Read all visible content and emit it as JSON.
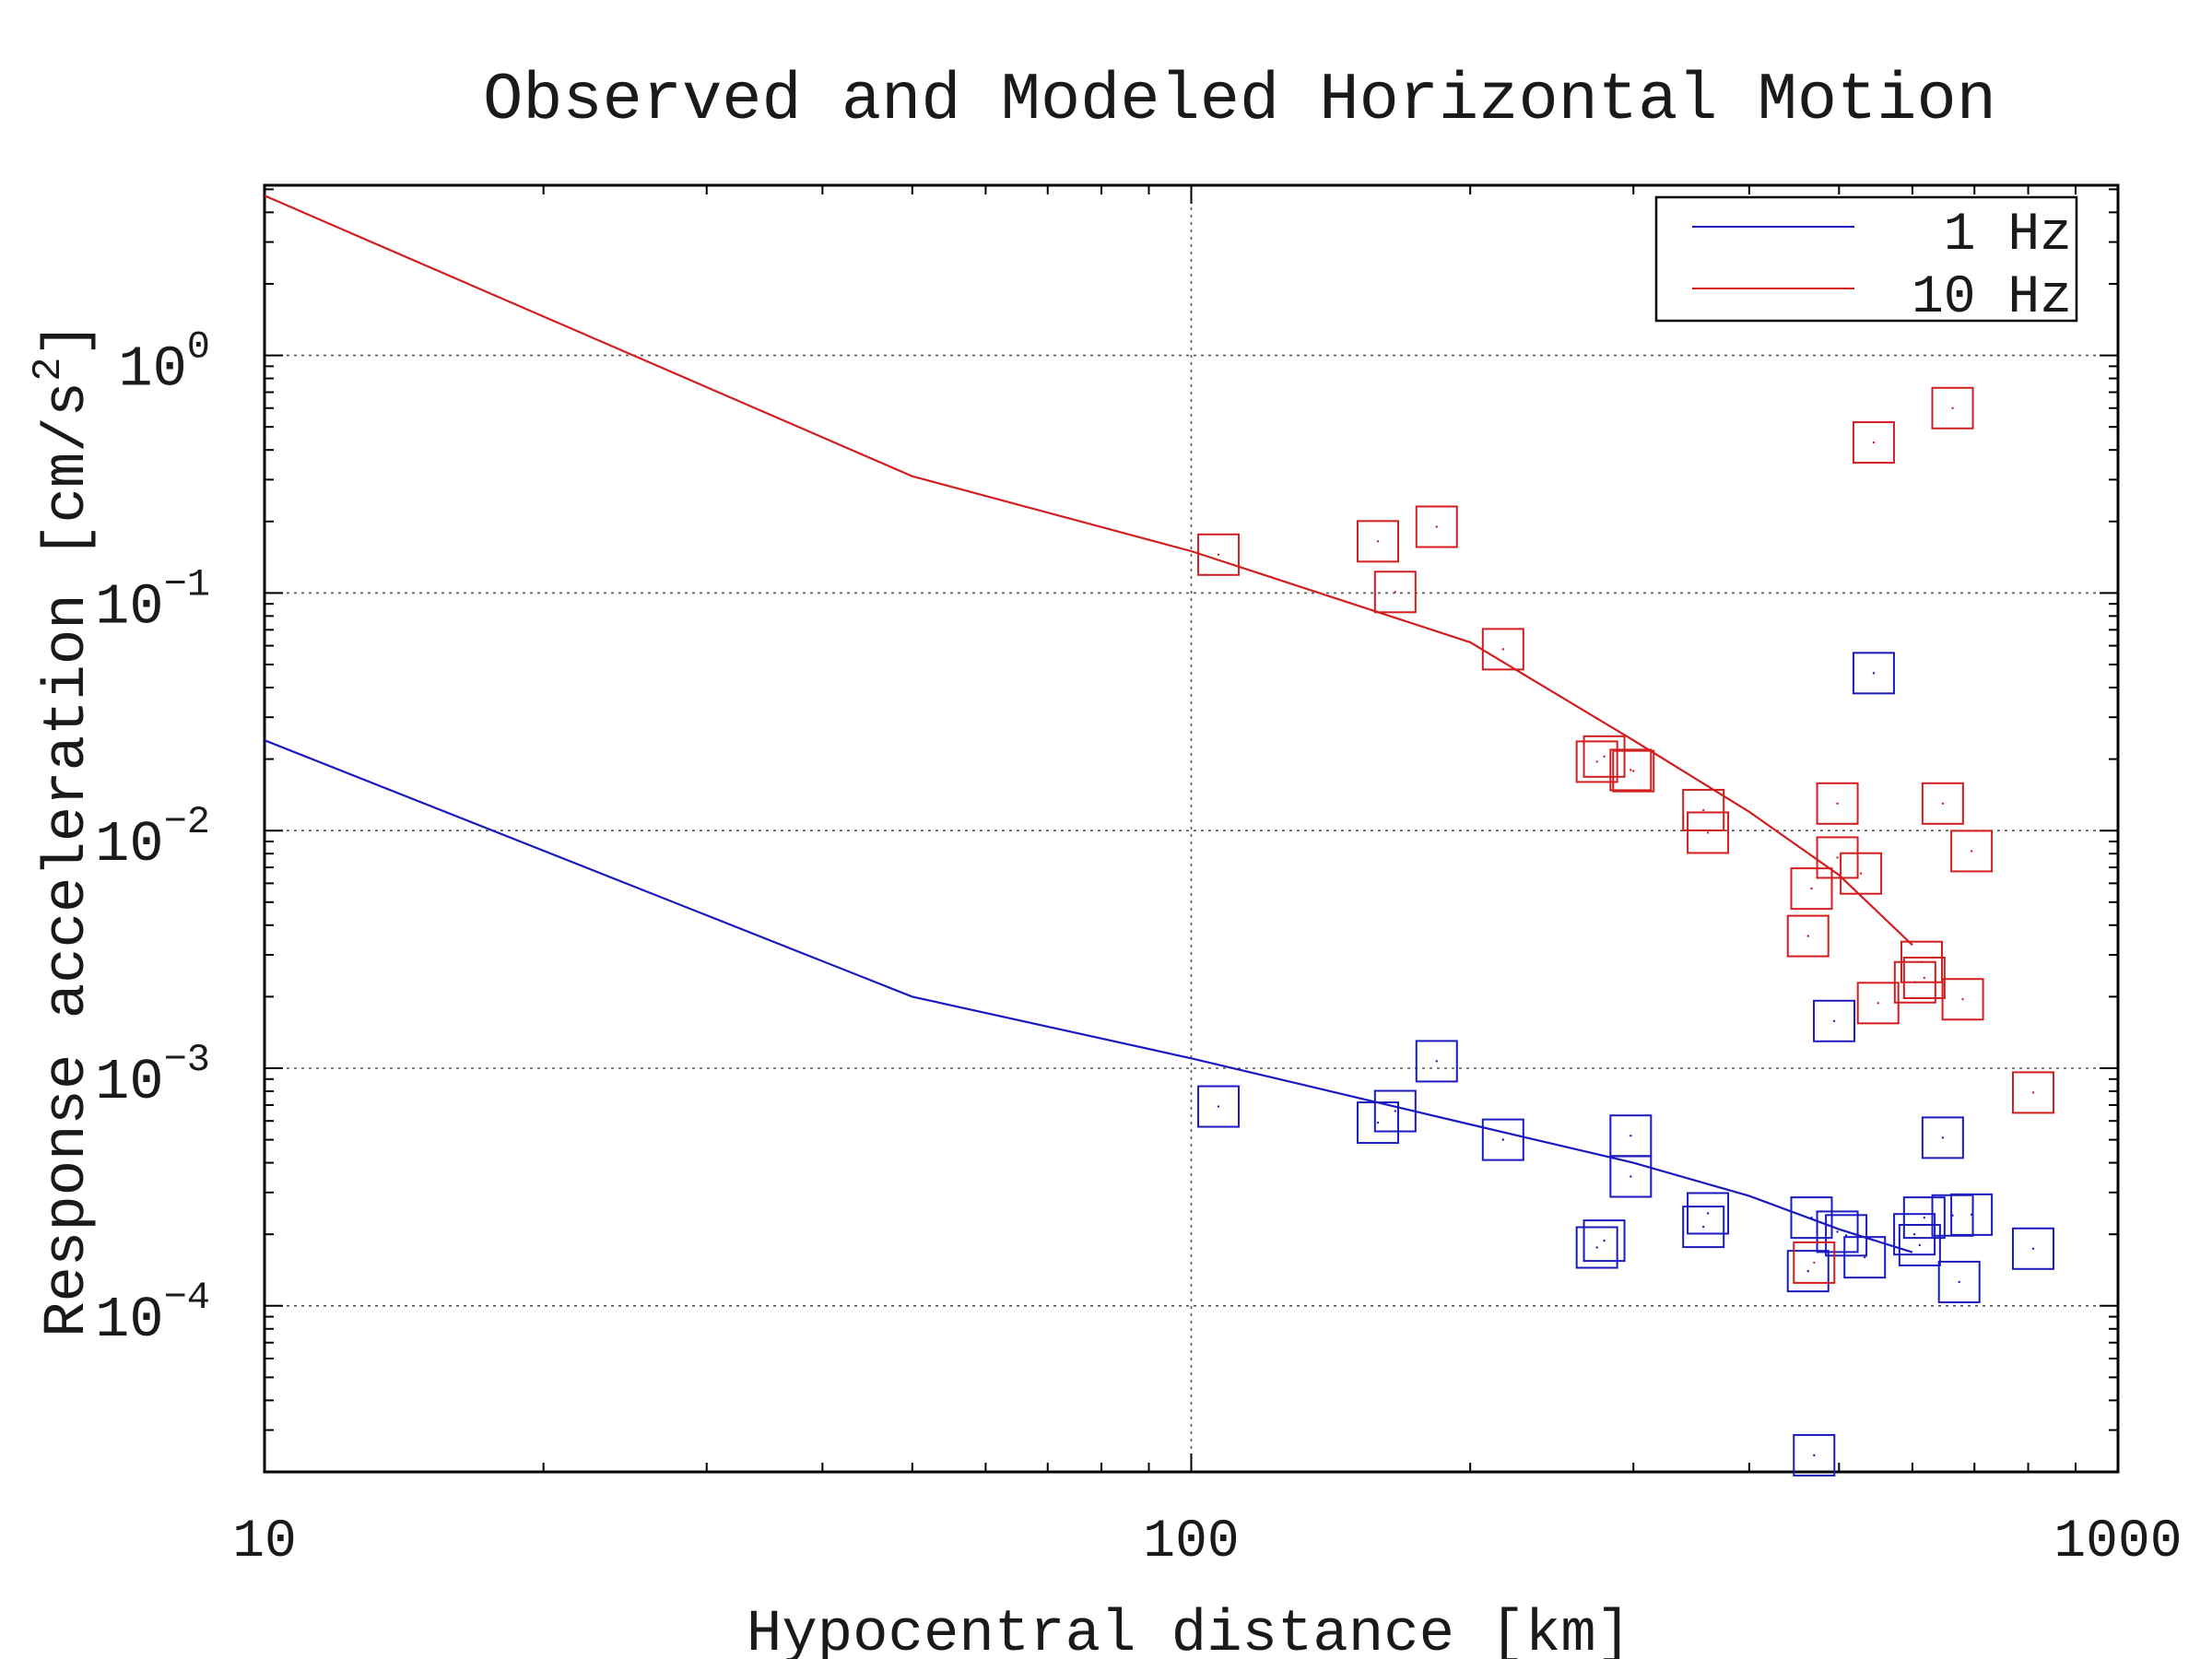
{
  "chart_data": {
    "type": "scatter",
    "title": "Observed and Modeled Horizontal Motion",
    "xlabel": "Hypocentral distance [km]",
    "ylabel": "Response acceleration [cm/s",
    "ylabel_sup": "2",
    "ylabel_end": "]",
    "x_scale": "log",
    "y_scale": "log",
    "xlim": [
      10,
      1000
    ],
    "ylim": [
      2e-05,
      5.2
    ],
    "grid": true,
    "legend_position": "top-right",
    "x_ticks": [
      {
        "value": 10,
        "label": "10"
      },
      {
        "value": 100,
        "label": "100"
      },
      {
        "value": 1000,
        "label": "1000"
      }
    ],
    "y_ticks": [
      {
        "value": 1,
        "base": "10",
        "exp": "0"
      },
      {
        "value": 0.1,
        "base": "10",
        "exp": "−1"
      },
      {
        "value": 0.01,
        "base": "10",
        "exp": "−2"
      },
      {
        "value": 0.001,
        "base": "10",
        "exp": "−3"
      },
      {
        "value": 0.0001,
        "base": "10",
        "exp": "−4"
      }
    ],
    "series": [
      {
        "name": "1 Hz",
        "color": "#1a1abf",
        "model": [
          [
            10,
            0.024
          ],
          [
            50,
            0.002
          ],
          [
            100,
            0.0011
          ],
          [
            200,
            0.00058
          ],
          [
            300,
            0.0004
          ],
          [
            400,
            0.00029
          ],
          [
            500,
            0.00021
          ],
          [
            600,
            0.000168
          ]
        ],
        "observed": [
          [
            107,
            0.00069
          ],
          [
            159,
            0.00059
          ],
          [
            166,
            0.00066
          ],
          [
            184,
            0.00107
          ],
          [
            217,
            0.0005
          ],
          [
            274,
            0.000176
          ],
          [
            279,
            0.000188
          ],
          [
            298,
            0.00052
          ],
          [
            298,
            0.00035
          ],
          [
            357,
            0.000215
          ],
          [
            361,
            0.000245
          ],
          [
            463,
            0.00014
          ],
          [
            467,
            0.000235
          ],
          [
            470,
            2.35e-05
          ],
          [
            494,
            0.00158
          ],
          [
            498,
            0.000205
          ],
          [
            509,
            0.000198
          ],
          [
            533,
            0.00016
          ],
          [
            545,
            0.046
          ],
          [
            603,
            0.0002
          ],
          [
            611,
            0.00018
          ],
          [
            618,
            0.000235
          ],
          [
            647,
            0.00051
          ],
          [
            663,
            0.00024
          ],
          [
            674,
            0.000126
          ],
          [
            695,
            0.000242
          ],
          [
            810,
            0.000174
          ]
        ]
      },
      {
        "name": "10 Hz",
        "color": "#d21e1e",
        "model": [
          [
            10,
            4.7
          ],
          [
            50,
            0.31
          ],
          [
            100,
            0.15
          ],
          [
            200,
            0.062
          ],
          [
            300,
            0.024
          ],
          [
            400,
            0.012
          ],
          [
            500,
            0.0065
          ],
          [
            600,
            0.0033
          ]
        ],
        "observed": [
          [
            107,
            0.145
          ],
          [
            159,
            0.165
          ],
          [
            166,
            0.101
          ],
          [
            184,
            0.19
          ],
          [
            217,
            0.058
          ],
          [
            274,
            0.0195
          ],
          [
            279,
            0.0205
          ],
          [
            298,
            0.018
          ],
          [
            300,
            0.0178
          ],
          [
            357,
            0.0122
          ],
          [
            361,
            0.0098
          ],
          [
            463,
            0.0036
          ],
          [
            467,
            0.0057
          ],
          [
            470,
            0.000152
          ],
          [
            498,
            0.013
          ],
          [
            498,
            0.0077
          ],
          [
            528,
            0.0066
          ],
          [
            545,
            0.43
          ],
          [
            551,
            0.00188
          ],
          [
            604,
            0.0023
          ],
          [
            614,
            0.0028
          ],
          [
            618,
            0.0024
          ],
          [
            647,
            0.013
          ],
          [
            663,
            0.6
          ],
          [
            680,
            0.00195
          ],
          [
            695,
            0.0082
          ],
          [
            810,
            0.00079
          ]
        ]
      }
    ]
  }
}
